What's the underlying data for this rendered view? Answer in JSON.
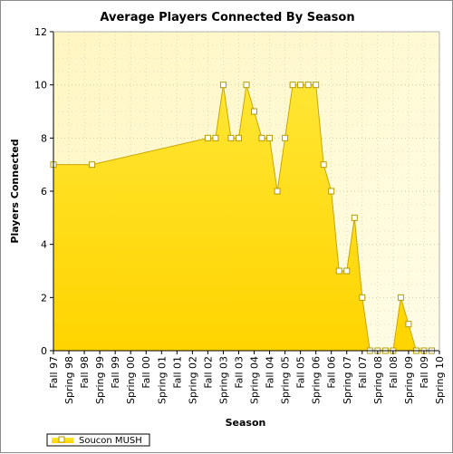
{
  "chart_data": {
    "type": "area",
    "title": "Average Players Connected By Season",
    "xlabel": "Season",
    "ylabel": "Players Connected",
    "ylim": [
      0,
      12
    ],
    "yticks": [
      0,
      2,
      4,
      6,
      8,
      10,
      12
    ],
    "grid": true,
    "legend_position": "bottom-left",
    "tick_labels": [
      "Fall 97",
      "Spring 98",
      "Fall 98",
      "Spring 99",
      "Fall 99",
      "Spring 00",
      "Fall 00",
      "Spring 01",
      "Fall 01",
      "Spring 02",
      "Fall 02",
      "Spring 03",
      "Fall 03",
      "Spring 04",
      "Fall 04",
      "Spring 05",
      "Fall 05",
      "Spring 06",
      "Fall 06",
      "Spring 07",
      "Fall 07",
      "Spring 08",
      "Fall 08",
      "Spring 09",
      "Fall 09",
      "Spring 10"
    ],
    "series": [
      {
        "name": "Soucon MUSH",
        "color": "#ffd700",
        "x": [
          0,
          5,
          20,
          21,
          22,
          23,
          24,
          25,
          26,
          27,
          28,
          29,
          30,
          31,
          32,
          33,
          34,
          35,
          36,
          37,
          38,
          39,
          40,
          41,
          42,
          43,
          44,
          45,
          46,
          47,
          48,
          49
        ],
        "values": [
          7,
          7,
          8,
          8,
          10,
          8,
          8,
          10,
          9,
          8,
          8,
          6,
          8,
          10,
          10,
          10,
          10,
          7,
          6,
          3,
          3,
          5,
          2,
          0,
          0,
          0,
          0,
          2,
          1,
          0,
          0,
          0
        ]
      }
    ]
  }
}
